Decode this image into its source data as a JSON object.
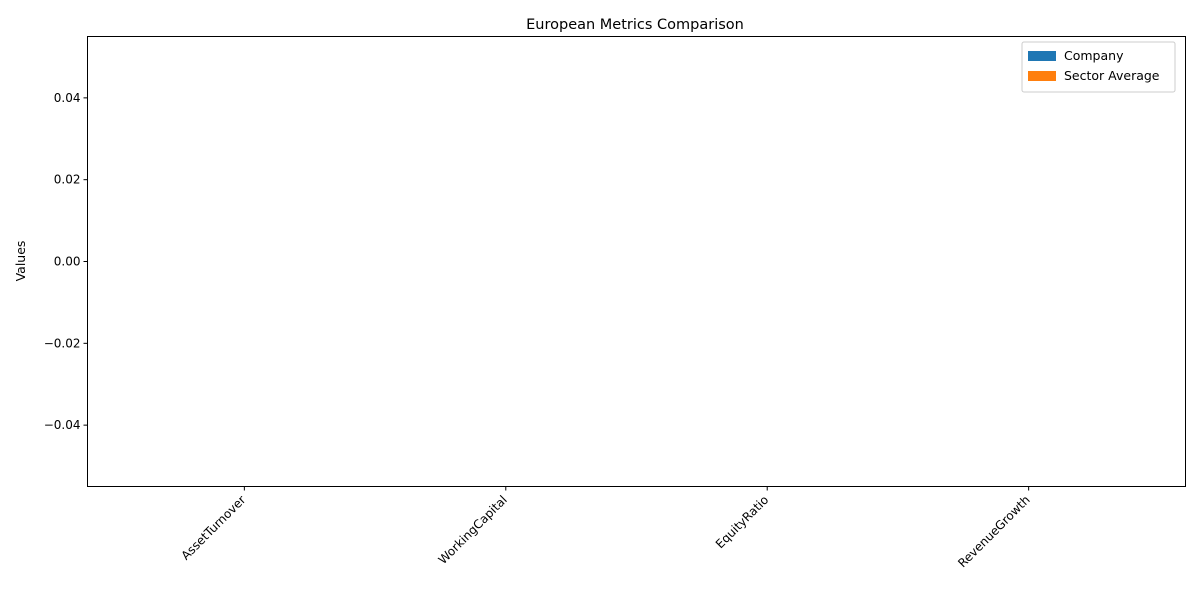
{
  "chart_data": {
    "type": "bar",
    "title": "European Metrics Comparison",
    "xlabel": "",
    "ylabel": "Values",
    "categories": [
      "AssetTurnover",
      "WorkingCapital",
      "EquityRatio",
      "RevenueGrowth"
    ],
    "series": [
      {
        "name": "Company",
        "values": [
          0,
          0,
          0,
          0
        ],
        "color": "#1f77b4"
      },
      {
        "name": "Sector Average",
        "values": [
          0,
          0,
          0,
          0
        ],
        "color": "#ff7f0e"
      }
    ],
    "ylim": [
      -0.055,
      0.055
    ],
    "yticks": [
      {
        "value": 0.04,
        "label": "0.04"
      },
      {
        "value": 0.02,
        "label": "0.02"
      },
      {
        "value": 0.0,
        "label": "0.00"
      },
      {
        "value": -0.02,
        "label": "−0.02"
      },
      {
        "value": -0.04,
        "label": "−0.04"
      }
    ],
    "grid": false,
    "legend_position": "top-right"
  }
}
